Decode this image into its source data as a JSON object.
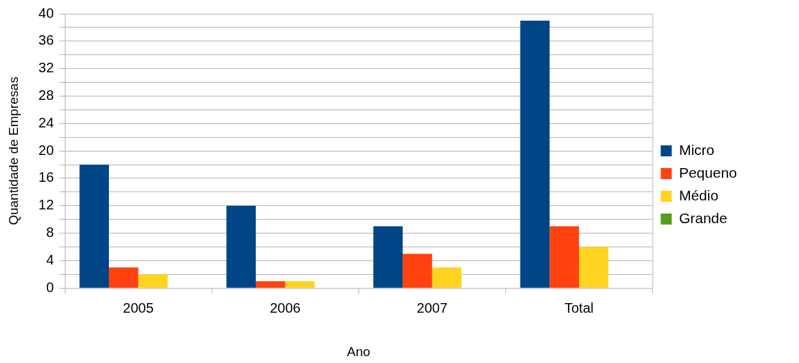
{
  "chart_data": {
    "type": "bar",
    "xlabel": "Ano",
    "ylabel": "Quantidade de Empresas",
    "categories": [
      "2005",
      "2006",
      "2007",
      "Total"
    ],
    "series": [
      {
        "name": "Micro",
        "color": "#004586",
        "values": [
          18,
          12,
          9,
          39
        ]
      },
      {
        "name": "Pequeno",
        "color": "#ff420e",
        "values": [
          3,
          1,
          5,
          9
        ]
      },
      {
        "name": "Médio",
        "color": "#ffd320",
        "values": [
          2,
          1,
          3,
          6
        ]
      },
      {
        "name": "Grande",
        "color": "#579d1c",
        "values": [
          0,
          0,
          0,
          0
        ]
      }
    ],
    "ylim": [
      0,
      40
    ],
    "yticks": [
      0,
      {
        "value": 2,
        "label": null
      },
      4,
      {
        "value": 6,
        "label": null
      },
      8,
      {
        "value": 10,
        "label": null
      },
      12,
      {
        "value": 14,
        "label": null
      },
      16,
      {
        "value": 18,
        "label": null
      },
      20,
      {
        "value": 22,
        "label": null
      },
      24,
      {
        "value": 26,
        "label": null
      },
      28,
      {
        "value": 30,
        "label": null
      },
      32,
      {
        "value": 34,
        "label": null
      },
      36,
      {
        "value": 38,
        "label": null
      },
      40
    ],
    "grid": "y",
    "legend": "right"
  }
}
